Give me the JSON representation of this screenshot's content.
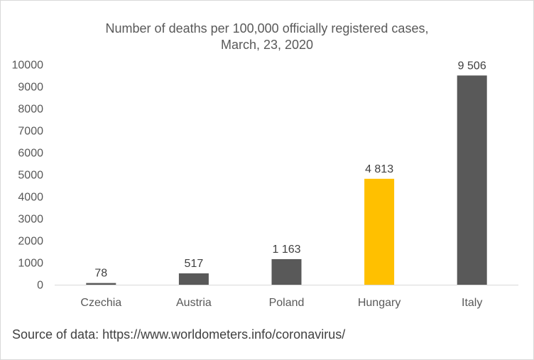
{
  "chart_data": {
    "type": "bar",
    "title_line1": "Number of deaths per 100,000 officially registered cases,",
    "title_line2": "March, 23, 2020",
    "categories": [
      "Czechia",
      "Austria",
      "Poland",
      "Hungary",
      "Italy"
    ],
    "values": [
      78,
      517,
      1163,
      4813,
      9506
    ],
    "data_labels": [
      "78",
      "517",
      "1 163",
      "4 813",
      "9 506"
    ],
    "bar_colors": [
      "#595959",
      "#595959",
      "#595959",
      "#ffc000",
      "#595959"
    ],
    "xlabel": "",
    "ylabel": "",
    "ylim": [
      0,
      10000
    ],
    "yticks": [
      0,
      1000,
      2000,
      3000,
      4000,
      5000,
      6000,
      7000,
      8000,
      9000,
      10000
    ],
    "grid": false,
    "legend": "none"
  },
  "source_text": "Source of data: https://www.worldometers.info/coronavirus/"
}
